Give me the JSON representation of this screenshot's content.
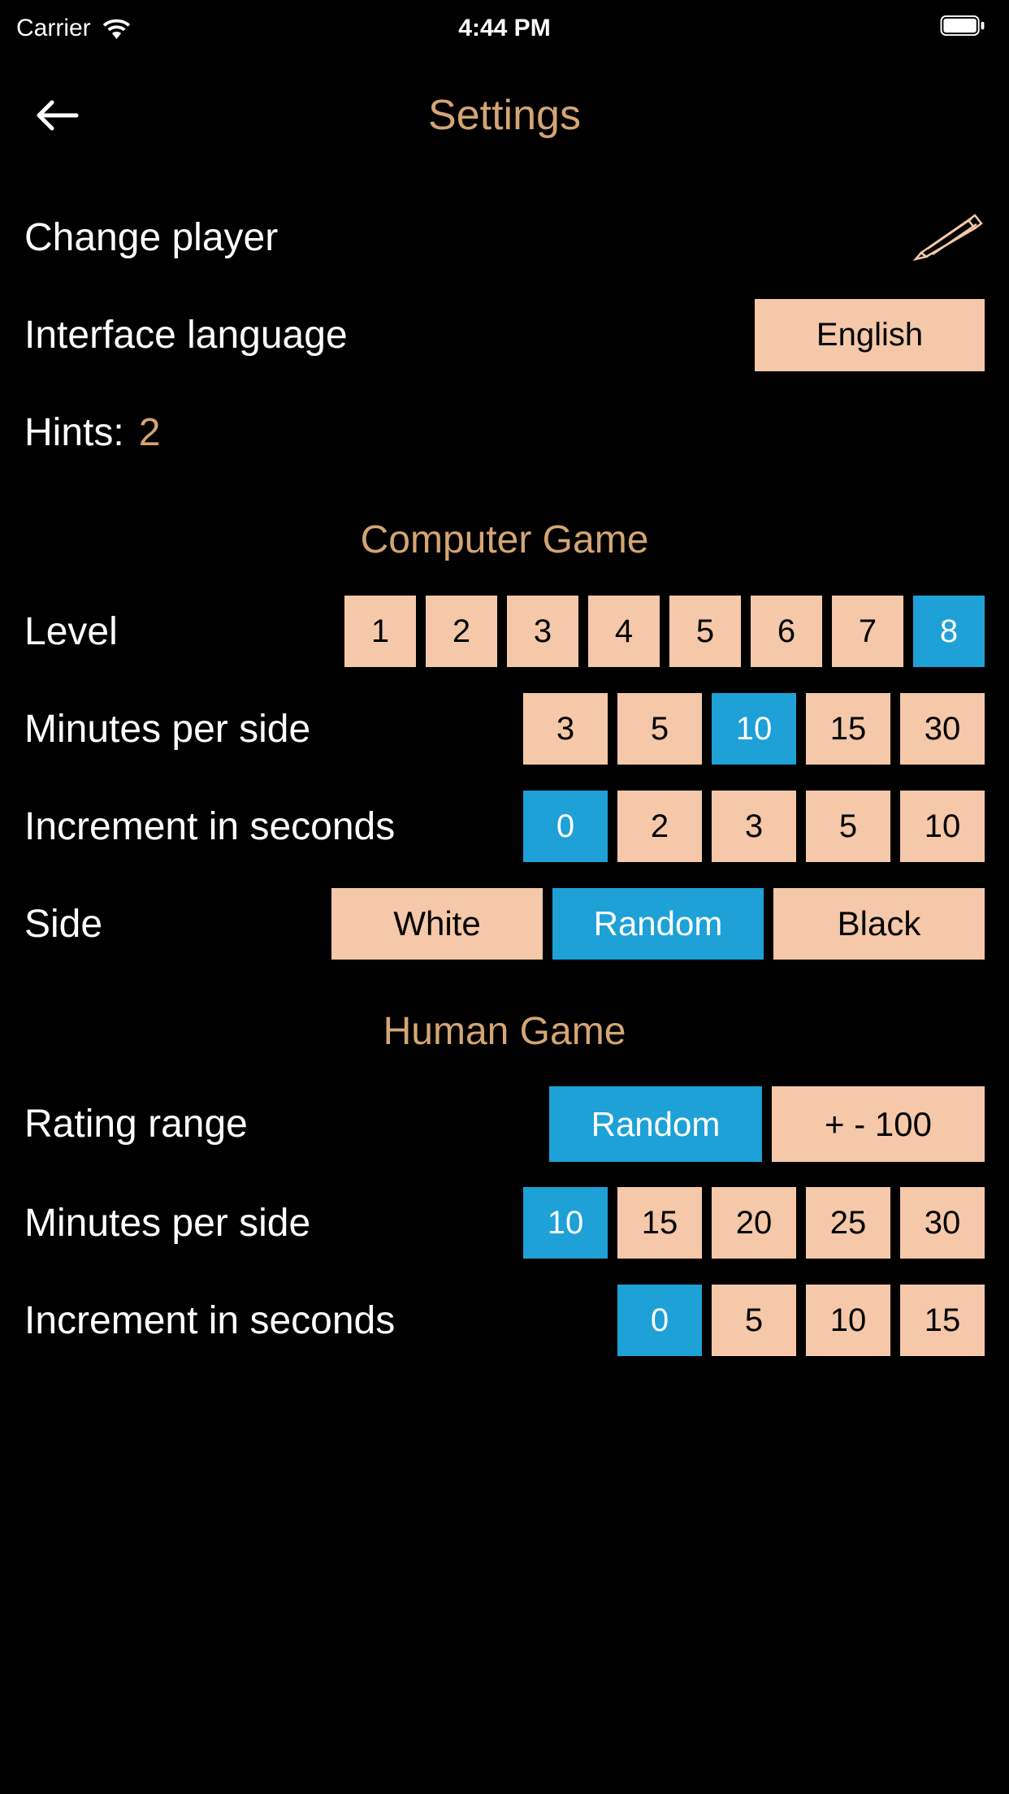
{
  "status_bar": {
    "carrier": "Carrier",
    "time": "4:44 PM"
  },
  "header": {
    "title": "Settings"
  },
  "colors": {
    "background": "#000000",
    "accent": "#d4a574",
    "button_bg": "#f4c8a8",
    "button_selected_bg": "#1da1d6",
    "text_white": "#ffffff",
    "text_black": "#000000"
  },
  "change_player": {
    "label": "Change player"
  },
  "language": {
    "label": "Interface language",
    "value": "English"
  },
  "hints": {
    "label": "Hints:",
    "value": "2"
  },
  "computer_game": {
    "title": "Computer Game",
    "level": {
      "label": "Level",
      "options": [
        "1",
        "2",
        "3",
        "4",
        "5",
        "6",
        "7",
        "8"
      ],
      "selected_index": 7
    },
    "minutes": {
      "label": "Minutes per side",
      "options": [
        "3",
        "5",
        "10",
        "15",
        "30"
      ],
      "selected_index": 2
    },
    "increment": {
      "label": "Increment in seconds",
      "options": [
        "0",
        "2",
        "3",
        "5",
        "10"
      ],
      "selected_index": 0
    },
    "side": {
      "label": "Side",
      "options": [
        "White",
        "Random",
        "Black"
      ],
      "selected_index": 1
    }
  },
  "human_game": {
    "title": "Human Game",
    "rating_range": {
      "label": "Rating range",
      "options": [
        "Random",
        "+ - 100"
      ],
      "selected_index": 0
    },
    "minutes": {
      "label": "Minutes per side",
      "options": [
        "10",
        "15",
        "20",
        "25",
        "30"
      ],
      "selected_index": 0
    },
    "increment": {
      "label": "Increment in seconds",
      "options": [
        "0",
        "5",
        "10",
        "15"
      ],
      "selected_index": 0
    }
  }
}
